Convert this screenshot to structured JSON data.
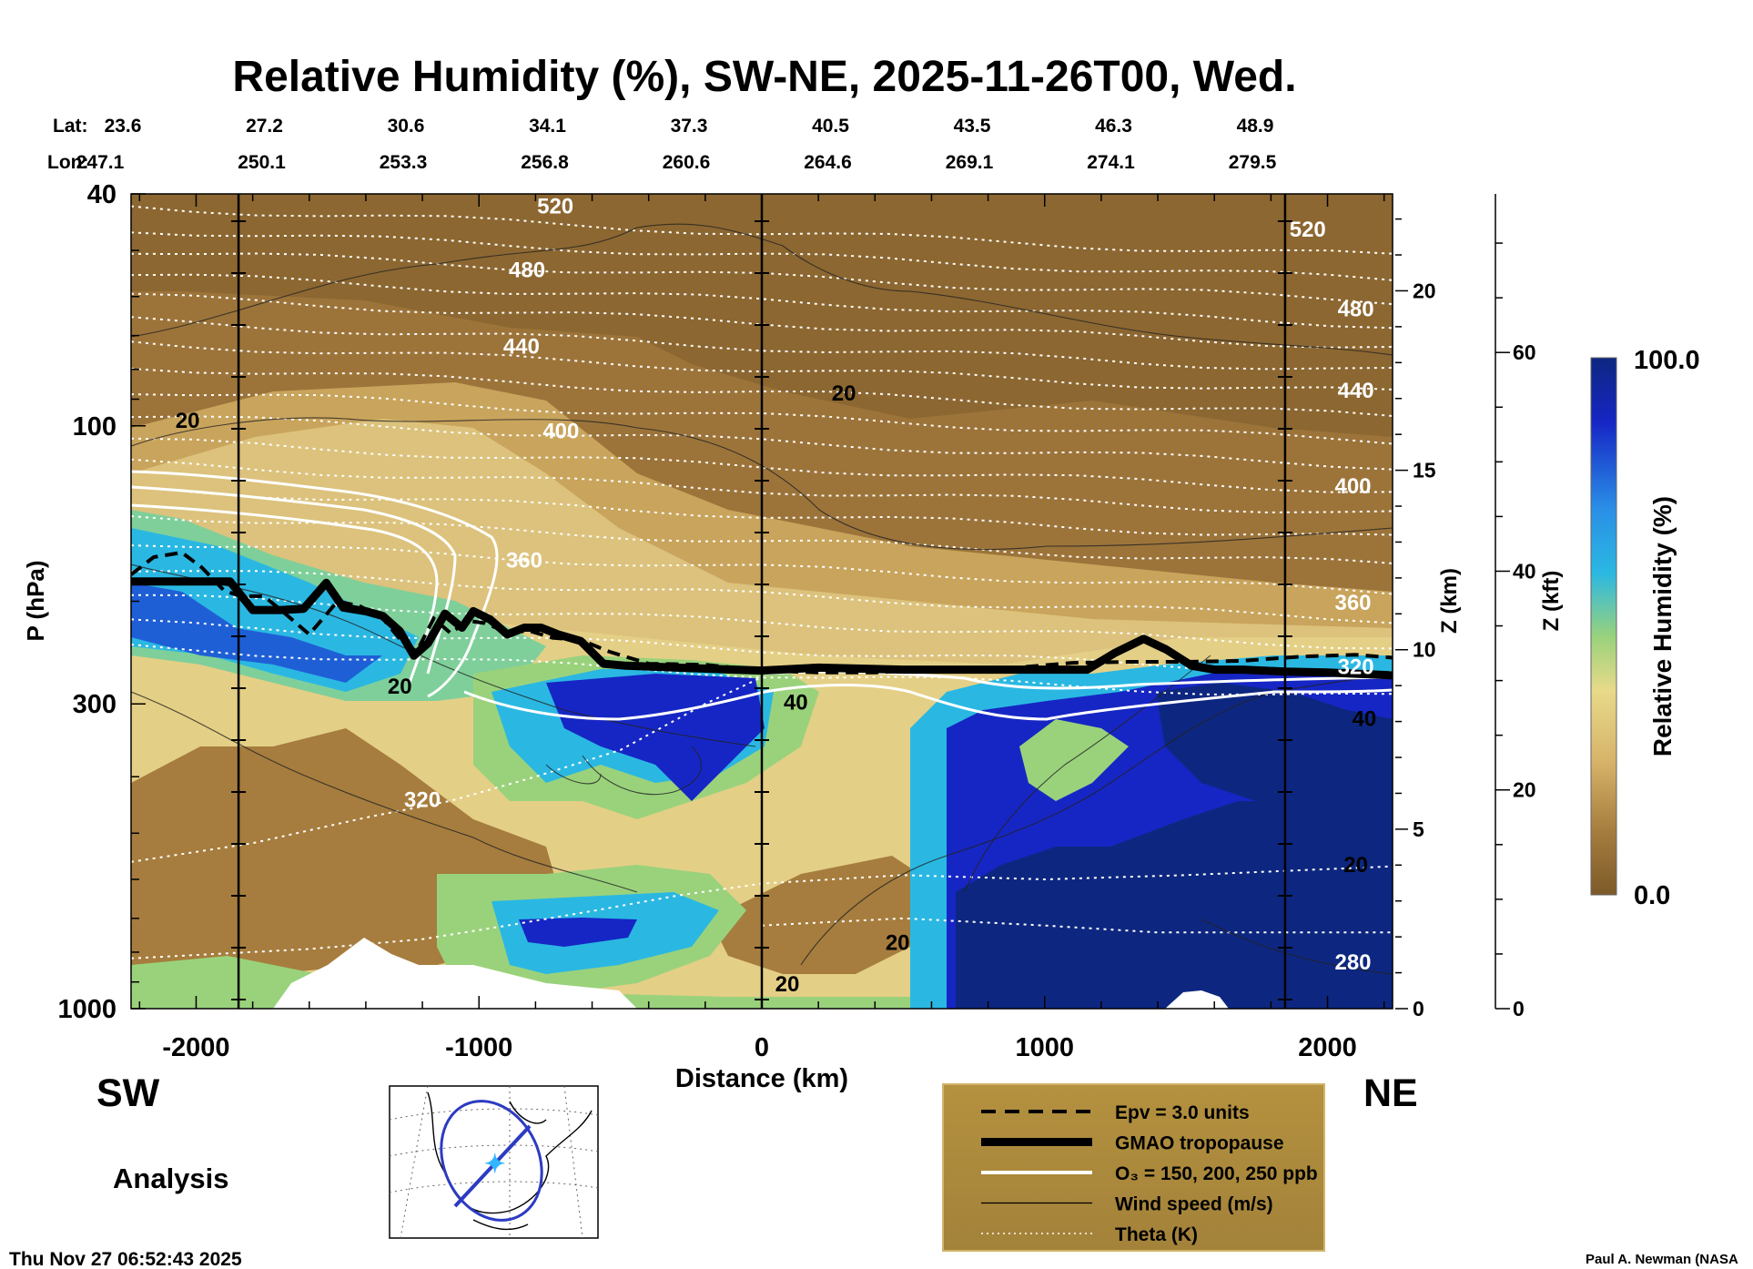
{
  "chart_data": {
    "type": "heatmap",
    "title": "Relative Humidity (%), SW-NE, 2025-11-26T00, Wed.",
    "xlabel": "Distance (km)",
    "ylabel": "P (hPa)",
    "z_km_label": "Z (km)",
    "z_kft_label": "Z (kft)",
    "colorbar_label": "Relative Humidity (%)",
    "colorbar_max": "100.0",
    "colorbar_min": "0.0",
    "xlim": [
      -2230,
      2230
    ],
    "ylim": [
      1000,
      40
    ],
    "x_ticks": [
      -2000,
      -1000,
      0,
      1000,
      2000
    ],
    "x_tick_labels": [
      "-2000",
      "-1000",
      "0",
      "1000",
      "2000"
    ],
    "y_ticks": [
      40,
      100,
      300,
      1000
    ],
    "y_tick_labels": [
      "40",
      "100",
      "300",
      "1000"
    ],
    "zkm_ticks": [
      0,
      5,
      10,
      15,
      20
    ],
    "zkm_tick_labels": [
      "0",
      "5",
      "10",
      "15",
      "20"
    ],
    "zkft_ticks": [
      0,
      20,
      40,
      60
    ],
    "zkft_tick_labels": [
      "0",
      "20",
      "40",
      "60"
    ],
    "lat_label": "Lat:",
    "lon_label": "Lon:",
    "lat_values": [
      "23.6",
      "27.2",
      "30.6",
      "34.1",
      "37.3",
      "40.5",
      "43.5",
      "46.3",
      "48.9"
    ],
    "lon_values": [
      "247.1",
      "250.1",
      "253.3",
      "256.8",
      "260.6",
      "264.6",
      "269.1",
      "274.1",
      "279.5"
    ],
    "station_lines_km": [
      -1850,
      0,
      1850
    ],
    "tropopause": {
      "x": [
        -2230,
        -1880,
        -1800,
        -1700,
        -1620,
        -1540,
        -1480,
        -1400,
        -1340,
        -1280,
        -1230,
        -1180,
        -1120,
        -1060,
        -1020,
        -960,
        -900,
        -840,
        -780,
        -720,
        -640,
        -560,
        -480,
        -300,
        -100,
        0,
        200,
        500,
        800,
        1000,
        1150,
        1250,
        1350,
        1430,
        1520,
        1600,
        1700,
        1850,
        2000,
        2230
      ],
      "p": [
        185,
        185,
        207,
        207,
        206,
        186,
        205,
        208,
        212,
        225,
        248,
        236,
        210,
        222,
        208,
        215,
        228,
        222,
        222,
        228,
        234,
        256,
        258,
        260,
        262,
        263,
        260,
        262,
        262,
        262,
        262,
        245,
        232,
        242,
        258,
        262,
        262,
        264,
        265,
        268
      ]
    },
    "epv_line": {
      "x": [
        -2230,
        -2150,
        -2050,
        -1980,
        -1900,
        -1840,
        -1760,
        -1680,
        -1600,
        -1500,
        -1420,
        -1340,
        -1280,
        -1220,
        -1160,
        -1100,
        -1040,
        -980,
        -900,
        -820,
        -740,
        -640,
        -540,
        -400,
        -200,
        0,
        200,
        400,
        600,
        900,
        1100,
        1300,
        1500,
        1700,
        1900,
        2100,
        2230
      ],
      "p": [
        180,
        168,
        165,
        175,
        192,
        196,
        196,
        211,
        228,
        200,
        204,
        214,
        232,
        244,
        214,
        227,
        216,
        218,
        226,
        225,
        231,
        233,
        244,
        256,
        257,
        263,
        265,
        265,
        262,
        260,
        255,
        254,
        254,
        253,
        249,
        247,
        250
      ]
    },
    "theta_labels": [
      {
        "x": -730,
        "p": 42,
        "text": "520"
      },
      {
        "x": 1930,
        "p": 46,
        "text": "520"
      },
      {
        "x": -830,
        "p": 54,
        "text": "480"
      },
      {
        "x": 2100,
        "p": 63,
        "text": "480"
      },
      {
        "x": -850,
        "p": 73,
        "text": "440"
      },
      {
        "x": 2100,
        "p": 87,
        "text": "440"
      },
      {
        "x": -710,
        "p": 102,
        "text": "400"
      },
      {
        "x": 2090,
        "p": 127,
        "text": "400"
      },
      {
        "x": -840,
        "p": 170,
        "text": "360"
      },
      {
        "x": 2090,
        "p": 201,
        "text": "360"
      },
      {
        "x": 2100,
        "p": 259,
        "text": "320"
      },
      {
        "x": -1200,
        "p": 438,
        "text": "320"
      },
      {
        "x": 2090,
        "p": 833,
        "text": "280"
      }
    ],
    "wind_labels": [
      {
        "x": -2030,
        "p": 98,
        "text": "20"
      },
      {
        "x": 290,
        "p": 88,
        "text": "20"
      },
      {
        "x": -1280,
        "p": 280,
        "text": "20"
      },
      {
        "x": 120,
        "p": 298,
        "text": "40"
      },
      {
        "x": 2130,
        "p": 318,
        "text": "40"
      },
      {
        "x": 2100,
        "p": 567,
        "text": "20"
      },
      {
        "x": 480,
        "p": 771,
        "text": "20"
      },
      {
        "x": 90,
        "p": 908,
        "text": "20"
      }
    ],
    "legend": [
      {
        "style": "dashed",
        "label": "Epv = 3.0 units"
      },
      {
        "style": "thick",
        "label": "GMAO tropopause"
      },
      {
        "style": "white",
        "label": "O₃ = 150, 200, 250 ppb"
      },
      {
        "style": "thin",
        "label": "Wind speed (m/s)"
      },
      {
        "style": "dotted",
        "label": "Theta (K)"
      }
    ]
  },
  "labels": {
    "sw": "SW",
    "ne": "NE",
    "analysis": "Analysis",
    "timestamp": "Thu Nov 27 06:52:43 2025",
    "credit": "Paul A. Newman (NASA"
  },
  "colors": {
    "dry_dark": "#7c5a28",
    "dry": "#a67d3e",
    "mid": "#dcc27c",
    "moist_green": "#9ad27c",
    "moist_cyan": "#2ab8e2",
    "wet": "#1626c4",
    "wet_dark": "#0d2780",
    "legend_bg": "#ad8a40"
  }
}
